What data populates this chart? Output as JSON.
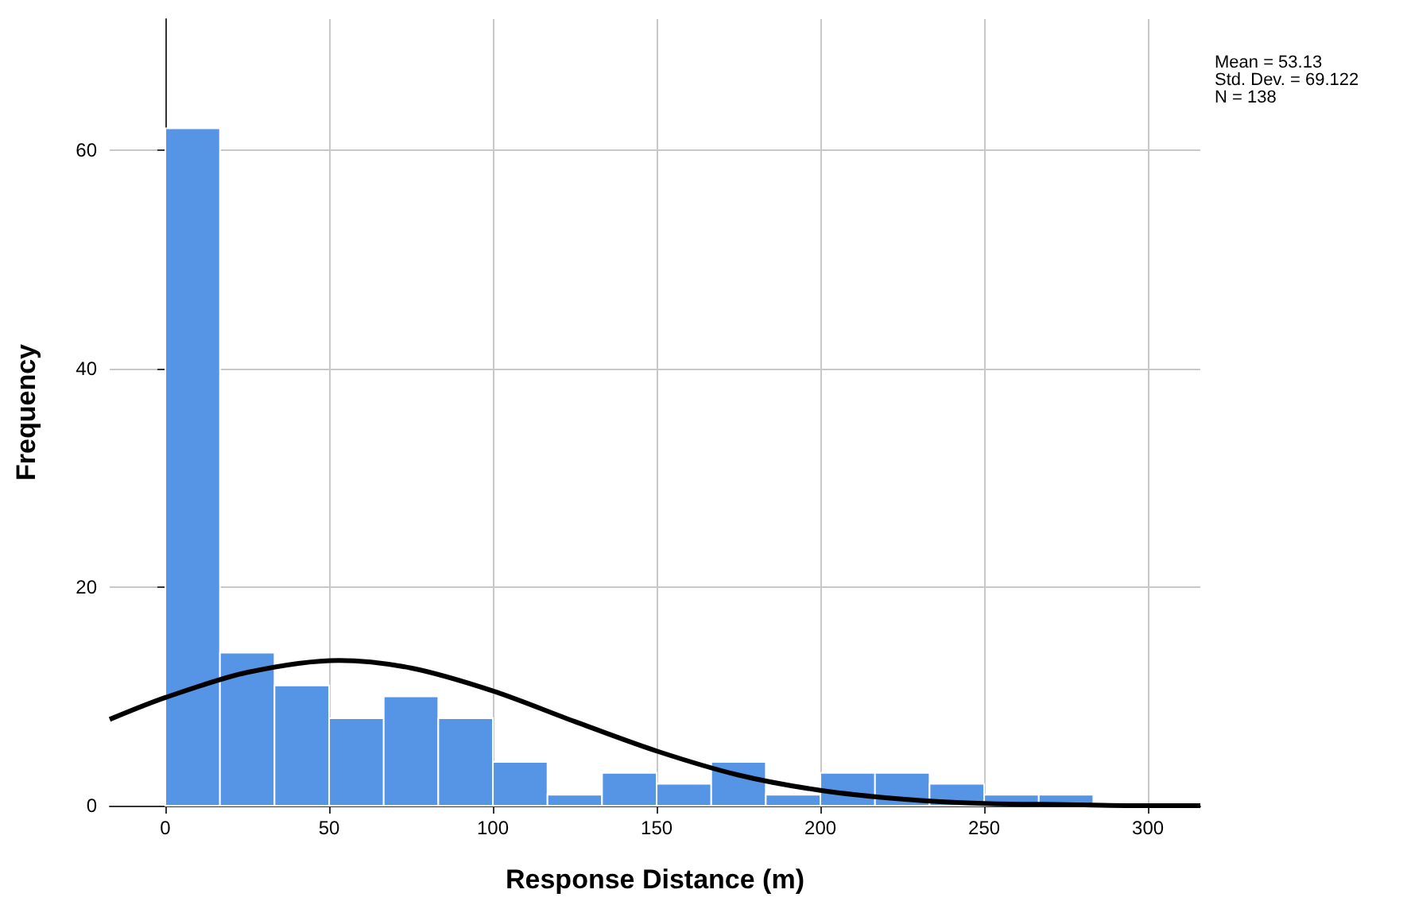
{
  "chart_data": {
    "type": "histogram",
    "xlabel": "Response Distance (m)",
    "ylabel": "Frequency",
    "bins": [
      0,
      16.67,
      33.33,
      50,
      66.67,
      83.33,
      100,
      116.67,
      133.33,
      150,
      166.67,
      183.33,
      200,
      216.67,
      233.33,
      250,
      266.67,
      283.33
    ],
    "values": [
      62,
      14,
      11,
      8,
      10,
      8,
      4,
      1,
      3,
      2,
      4,
      1,
      3,
      3,
      2,
      1,
      1
    ],
    "color": "#5694e6",
    "series": [
      {
        "type": "line",
        "color": "#000000",
        "x": [
          -17,
          0,
          25,
          53,
          75,
          100,
          125,
          150,
          175,
          200,
          225,
          250,
          275,
          300,
          316
        ],
        "values": [
          7.9,
          9.9,
          12.2,
          13.3,
          12.6,
          10.5,
          7.7,
          5,
          2.8,
          1.4,
          0.6,
          0.2,
          0.1,
          0,
          0
        ]
      }
    ],
    "xlim": [
      -17,
      316
    ],
    "xticks": [
      0,
      50,
      100,
      150,
      200,
      250,
      300
    ],
    "ylim": [
      0,
      72
    ],
    "yticks": [
      0,
      20,
      40,
      60
    ],
    "grid": true,
    "annotations": [
      "Mean = 53.13",
      "Std. Dev. = 69.122",
      "N = 138"
    ]
  }
}
